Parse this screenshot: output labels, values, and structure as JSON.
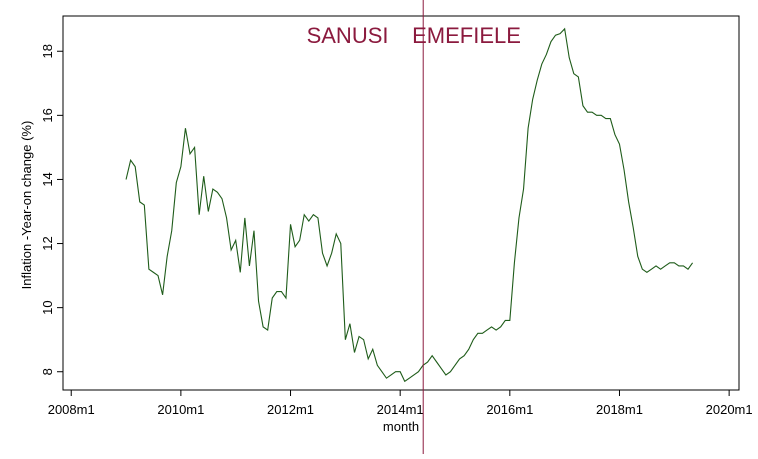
{
  "chart_data": {
    "type": "line",
    "title": "",
    "xlabel": "month",
    "ylabel": "Inflation -Year-on change (%)",
    "x_ticks": [
      {
        "value": 2008,
        "label": "2008m1"
      },
      {
        "value": 2010,
        "label": "2010m1"
      },
      {
        "value": 2012,
        "label": "2012m1"
      },
      {
        "value": 2014,
        "label": "2014m1"
      },
      {
        "value": 2016,
        "label": "2016m1"
      },
      {
        "value": 2018,
        "label": "2018m1"
      },
      {
        "value": 2020,
        "label": "2020m1"
      }
    ],
    "y_ticks": [
      {
        "value": 8,
        "label": "8"
      },
      {
        "value": 10,
        "label": "10"
      },
      {
        "value": 12,
        "label": "12"
      },
      {
        "value": 14,
        "label": "14"
      },
      {
        "value": 16,
        "label": "16"
      },
      {
        "value": 18,
        "label": "18"
      }
    ],
    "xlim": [
      2007.85,
      2020.18
    ],
    "ylim": [
      7.43,
      19.1
    ],
    "grid": false,
    "legend": "none",
    "vline": {
      "x": "2014m6",
      "x_value": 2014.42
    },
    "annotations": [
      {
        "text": "SANUSI",
        "x": 2013.04,
        "y": 18.5
      },
      {
        "text": "EMEFIELE",
        "x": 2015.21,
        "y": 18.5
      }
    ],
    "series": [
      {
        "x": [
          "2009m1",
          "2009m2",
          "2009m3",
          "2009m4",
          "2009m5",
          "2009m6",
          "2009m7",
          "2009m8",
          "2009m9",
          "2009m10",
          "2009m11",
          "2009m12",
          "2010m1",
          "2010m2",
          "2010m3",
          "2010m4",
          "2010m5",
          "2010m6",
          "2010m7",
          "2010m8",
          "2010m9",
          "2010m10",
          "2010m11",
          "2010m12",
          "2011m1",
          "2011m2",
          "2011m3",
          "2011m4",
          "2011m5",
          "2011m6",
          "2011m7",
          "2011m8",
          "2011m9",
          "2011m10",
          "2011m11",
          "2011m12",
          "2012m1",
          "2012m2",
          "2012m3",
          "2012m4",
          "2012m5",
          "2012m6",
          "2012m7",
          "2012m8",
          "2012m9",
          "2012m10",
          "2012m11",
          "2012m12",
          "2013m1",
          "2013m2",
          "2013m3",
          "2013m4",
          "2013m5",
          "2013m6",
          "2013m7",
          "2013m8",
          "2013m9",
          "2013m10",
          "2013m11",
          "2013m12",
          "2014m1",
          "2014m2",
          "2014m3",
          "2014m4",
          "2014m5",
          "2014m6",
          "2014m7",
          "2014m8",
          "2014m9",
          "2014m10",
          "2014m11",
          "2014m12",
          "2015m1",
          "2015m2",
          "2015m3",
          "2015m4",
          "2015m5",
          "2015m6",
          "2015m7",
          "2015m8",
          "2015m9",
          "2015m10",
          "2015m11",
          "2015m12",
          "2016m1",
          "2016m2",
          "2016m3",
          "2016m4",
          "2016m5",
          "2016m6",
          "2016m7",
          "2016m8",
          "2016m9",
          "2016m10",
          "2016m11",
          "2016m12",
          "2017m1",
          "2017m2",
          "2017m3",
          "2017m4",
          "2017m5",
          "2017m6",
          "2017m7",
          "2017m8",
          "2017m9",
          "2017m10",
          "2017m11",
          "2017m12",
          "2018m1",
          "2018m2",
          "2018m3",
          "2018m4",
          "2018m5",
          "2018m6",
          "2018m7",
          "2018m8",
          "2018m9",
          "2018m10",
          "2018m11",
          "2018m12",
          "2019m1",
          "2019m2",
          "2019m3",
          "2019m4",
          "2019m5"
        ],
        "values": [
          14.0,
          14.6,
          14.4,
          13.3,
          13.2,
          11.2,
          11.1,
          11.0,
          10.4,
          11.6,
          12.4,
          13.9,
          14.4,
          15.6,
          14.8,
          15.0,
          12.9,
          14.1,
          13.0,
          13.7,
          13.6,
          13.4,
          12.8,
          11.8,
          12.1,
          11.1,
          12.8,
          11.3,
          12.4,
          10.2,
          9.4,
          9.3,
          10.3,
          10.5,
          10.5,
          10.3,
          12.6,
          11.9,
          12.1,
          12.9,
          12.7,
          12.9,
          12.8,
          11.7,
          11.3,
          11.7,
          12.3,
          12.0,
          9.0,
          9.5,
          8.6,
          9.1,
          9.0,
          8.4,
          8.7,
          8.2,
          8.0,
          7.8,
          7.9,
          8.0,
          8.0,
          7.7,
          7.8,
          7.9,
          8.0,
          8.2,
          8.3,
          8.5,
          8.3,
          8.1,
          7.9,
          8.0,
          8.2,
          8.4,
          8.5,
          8.7,
          9.0,
          9.2,
          9.2,
          9.3,
          9.4,
          9.3,
          9.4,
          9.6,
          9.6,
          11.4,
          12.8,
          13.7,
          15.6,
          16.5,
          17.1,
          17.6,
          17.9,
          18.3,
          18.5,
          18.55,
          18.7,
          17.8,
          17.3,
          17.2,
          16.3,
          16.1,
          16.1,
          16.0,
          16.0,
          15.9,
          15.9,
          15.4,
          15.1,
          14.3,
          13.3,
          12.5,
          11.6,
          11.2,
          11.1,
          11.2,
          11.3,
          11.2,
          11.3,
          11.4,
          11.4,
          11.3,
          11.3,
          11.2,
          11.4
        ]
      }
    ],
    "colors": {
      "series": "#1f5c1a",
      "vline": "#8b1a3e",
      "annotation": "#8b1a3e",
      "axis": "#000000"
    }
  }
}
